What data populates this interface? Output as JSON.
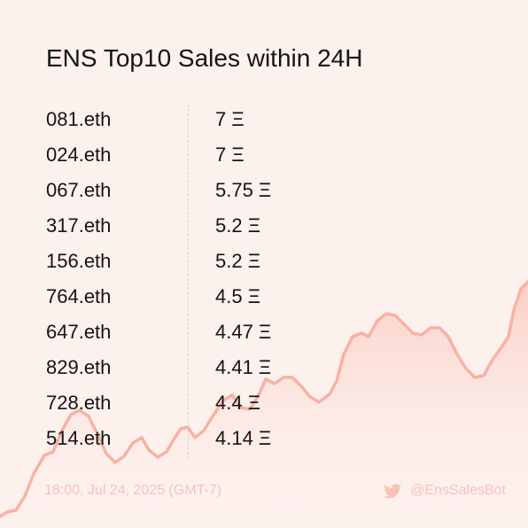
{
  "title": "ENS Top10 Sales within 24H",
  "sales": [
    {
      "name": "081.eth",
      "price": "7 Ξ"
    },
    {
      "name": "024.eth",
      "price": "7 Ξ"
    },
    {
      "name": "067.eth",
      "price": "5.75 Ξ"
    },
    {
      "name": "317.eth",
      "price": "5.2 Ξ"
    },
    {
      "name": "156.eth",
      "price": "5.2 Ξ"
    },
    {
      "name": "764.eth",
      "price": "4.5 Ξ"
    },
    {
      "name": "647.eth",
      "price": "4.47 Ξ"
    },
    {
      "name": "829.eth",
      "price": "4.41 Ξ"
    },
    {
      "name": "728.eth",
      "price": "4.4 Ξ"
    },
    {
      "name": "514.eth",
      "price": "4.14 Ξ"
    }
  ],
  "footer": {
    "timestamp": "18:00, Jul 24, 2025 (GMT-7)",
    "bot_handle": "@EnsSalesBot",
    "bot_icon": "twitter-icon"
  },
  "colors": {
    "background": "#fdf1ee",
    "accent_line": "#f9b1a3",
    "footer_text": "#f7c3b8",
    "text": "#141414"
  }
}
